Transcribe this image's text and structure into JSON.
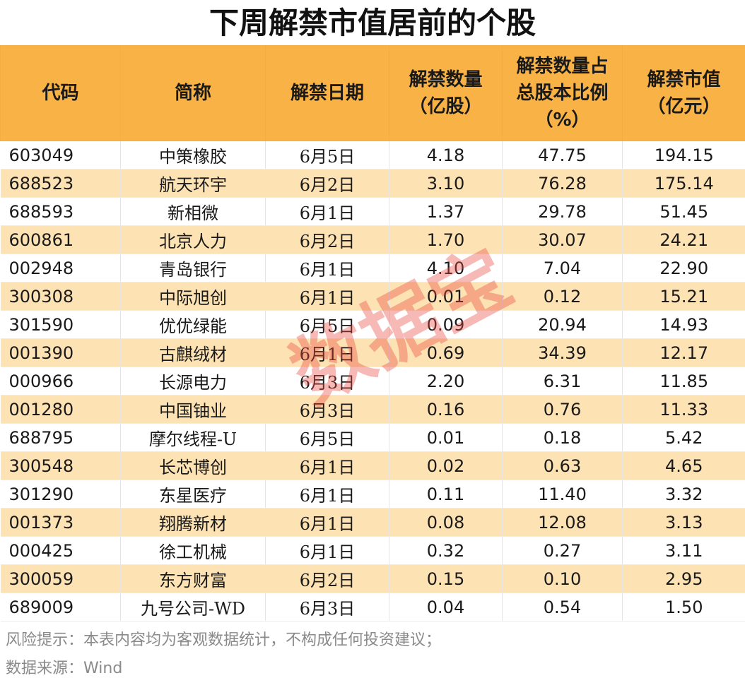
{
  "title": "下周解禁市值居前的个股",
  "headers": [
    {
      "lines": [
        "代码"
      ]
    },
    {
      "lines": [
        "简称"
      ]
    },
    {
      "lines": [
        "解禁日期"
      ]
    },
    {
      "lines": [
        "解禁数量",
        "（亿股）"
      ]
    },
    {
      "lines": [
        "解禁数量占",
        "总股本比例",
        "（%）"
      ]
    },
    {
      "lines": [
        "解禁市值",
        "（亿元）"
      ]
    }
  ],
  "rows": [
    [
      "603049",
      "中策橡胶",
      "6月5日",
      "4.18",
      "47.75",
      "194.15"
    ],
    [
      "688523",
      "航天环宇",
      "6月2日",
      "3.10",
      "76.28",
      "175.14"
    ],
    [
      "688593",
      "新相微",
      "6月1日",
      "1.37",
      "29.78",
      "51.45"
    ],
    [
      "600861",
      "北京人力",
      "6月2日",
      "1.70",
      "30.07",
      "24.21"
    ],
    [
      "002948",
      "青岛银行",
      "6月1日",
      "4.10",
      "7.04",
      "22.90"
    ],
    [
      "300308",
      "中际旭创",
      "6月1日",
      "0.01",
      "0.12",
      "15.21"
    ],
    [
      "301590",
      "优优绿能",
      "6月5日",
      "0.09",
      "20.94",
      "14.93"
    ],
    [
      "001390",
      "古麒绒材",
      "6月1日",
      "0.69",
      "34.39",
      "12.17"
    ],
    [
      "000966",
      "长源电力",
      "6月3日",
      "2.20",
      "6.31",
      "11.85"
    ],
    [
      "001280",
      "中国铀业",
      "6月3日",
      "0.16",
      "0.76",
      "11.33"
    ],
    [
      "688795",
      "摩尔线程-U",
      "6月5日",
      "0.01",
      "0.18",
      "5.42"
    ],
    [
      "300548",
      "长芯博创",
      "6月1日",
      "0.02",
      "0.63",
      "4.65"
    ],
    [
      "301290",
      "东星医疗",
      "6月1日",
      "0.11",
      "11.40",
      "3.32"
    ],
    [
      "001373",
      "翔腾新材",
      "6月1日",
      "0.08",
      "12.08",
      "3.13"
    ],
    [
      "000425",
      "徐工机械",
      "6月1日",
      "0.32",
      "0.27",
      "3.11"
    ],
    [
      "300059",
      "东方财富",
      "6月2日",
      "0.15",
      "0.10",
      "2.95"
    ],
    [
      "689009",
      "九号公司-WD",
      "6月3日",
      "0.04",
      "0.54",
      "1.50"
    ]
  ],
  "footer": {
    "risk_note": "风险提示：本表内容均为客观数据统计，不构成任何投资建议；",
    "source": "数据来源：Wind"
  },
  "watermark": "数据宝",
  "colors": {
    "header_bg": "#f8b246",
    "stripe_bg": "#fde3b4",
    "watermark": "#eb463c"
  }
}
